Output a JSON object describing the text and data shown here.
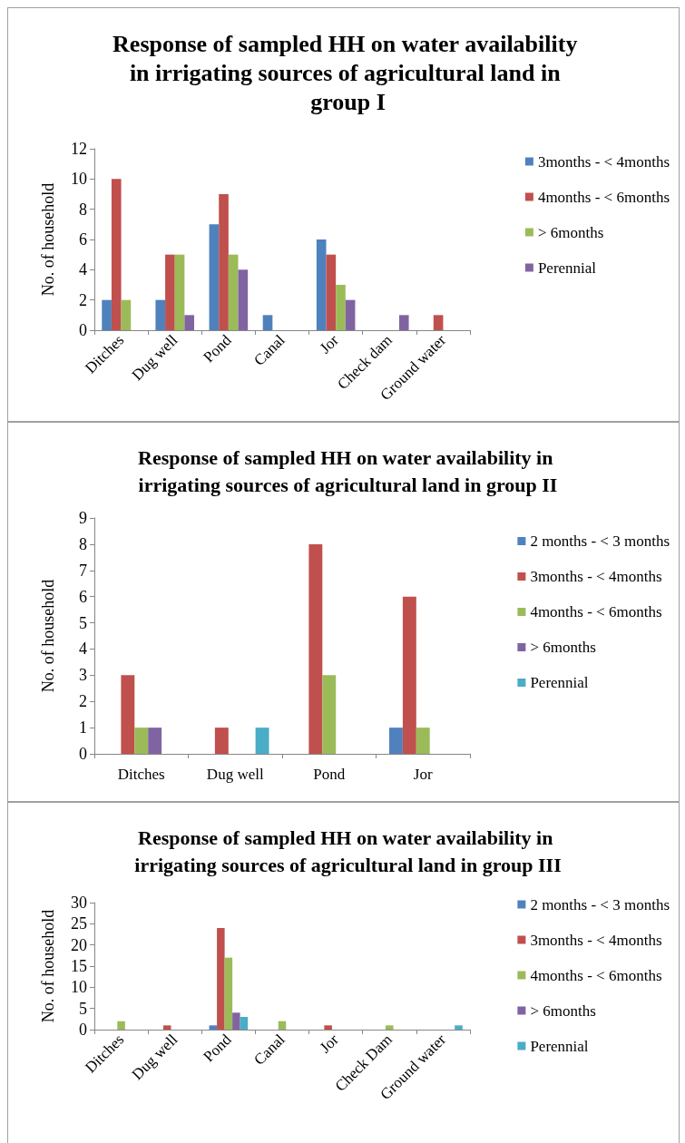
{
  "chart_data": [
    {
      "type": "bar",
      "title": "Response of sampled HH on water availability in irrigating sources of agricultural land in group I",
      "ylabel": "No. of household",
      "categories": [
        "Ditches",
        "Dug well",
        "Pond",
        "Canal",
        "Jor",
        "Check dam",
        "Ground water"
      ],
      "series": [
        {
          "name": "3months - < 4months",
          "color": "#4f81bd",
          "values": [
            2,
            2,
            7,
            1,
            6,
            0,
            0
          ]
        },
        {
          "name": "4months - < 6months",
          "color": "#c0504d",
          "values": [
            10,
            5,
            9,
            0,
            5,
            0,
            1
          ]
        },
        {
          "name": "> 6months",
          "color": "#9bbb59",
          "values": [
            2,
            5,
            5,
            0,
            3,
            0,
            0
          ]
        },
        {
          "name": "Perennial",
          "color": "#8064a2",
          "values": [
            0,
            1,
            4,
            0,
            2,
            1,
            0
          ]
        }
      ],
      "ylim": [
        0,
        12
      ],
      "yticks": [
        0,
        2,
        4,
        6,
        8,
        10,
        12
      ],
      "grid": false,
      "legend": "right"
    },
    {
      "type": "bar",
      "title": "Response of sampled HH on water availability in irrigating sources of agricultural land in group II",
      "ylabel": "No. of household",
      "categories": [
        "Ditches",
        "Dug well",
        "Pond",
        "Jor"
      ],
      "series": [
        {
          "name": "2 months - < 3 months",
          "color": "#4f81bd",
          "values": [
            0,
            0,
            0,
            1
          ]
        },
        {
          "name": "3months - < 4months",
          "color": "#c0504d",
          "values": [
            3,
            1,
            8,
            6
          ]
        },
        {
          "name": "4months - < 6months",
          "color": "#9bbb59",
          "values": [
            1,
            0,
            3,
            1
          ]
        },
        {
          "name": "> 6months",
          "color": "#8064a2",
          "values": [
            1,
            0,
            0,
            0
          ]
        },
        {
          "name": "Perennial",
          "color": "#4bacc6",
          "values": [
            0,
            1,
            0,
            0
          ]
        }
      ],
      "ylim": [
        0,
        9
      ],
      "yticks": [
        0,
        1,
        2,
        3,
        4,
        5,
        6,
        7,
        8,
        9
      ],
      "grid": false,
      "legend": "right"
    },
    {
      "type": "bar",
      "title": "Response of sampled HH on water availability in irrigating sources of agricultural land in group III",
      "ylabel": "No. of household",
      "categories": [
        "Ditches",
        "Dug well",
        "Pond",
        "Canal",
        "Jor",
        "Check Dam",
        "Ground water"
      ],
      "series": [
        {
          "name": "2 months - < 3 months",
          "color": "#4f81bd",
          "values": [
            0,
            0,
            1,
            0,
            0,
            0,
            0
          ]
        },
        {
          "name": "3months - < 4months",
          "color": "#c0504d",
          "values": [
            0,
            1,
            24,
            0,
            1,
            0,
            0
          ]
        },
        {
          "name": "4months - < 6months",
          "color": "#9bbb59",
          "values": [
            2,
            0,
            17,
            2,
            0,
            1,
            0
          ]
        },
        {
          "name": "> 6months",
          "color": "#8064a2",
          "values": [
            0,
            0,
            4,
            0,
            0,
            0,
            0
          ]
        },
        {
          "name": "Perennial",
          "color": "#4bacc6",
          "values": [
            0,
            0,
            3,
            0,
            0,
            0,
            1
          ]
        }
      ],
      "ylim": [
        0,
        30
      ],
      "yticks": [
        0,
        5,
        10,
        15,
        20,
        25,
        30
      ],
      "grid": false,
      "legend": "right"
    }
  ]
}
